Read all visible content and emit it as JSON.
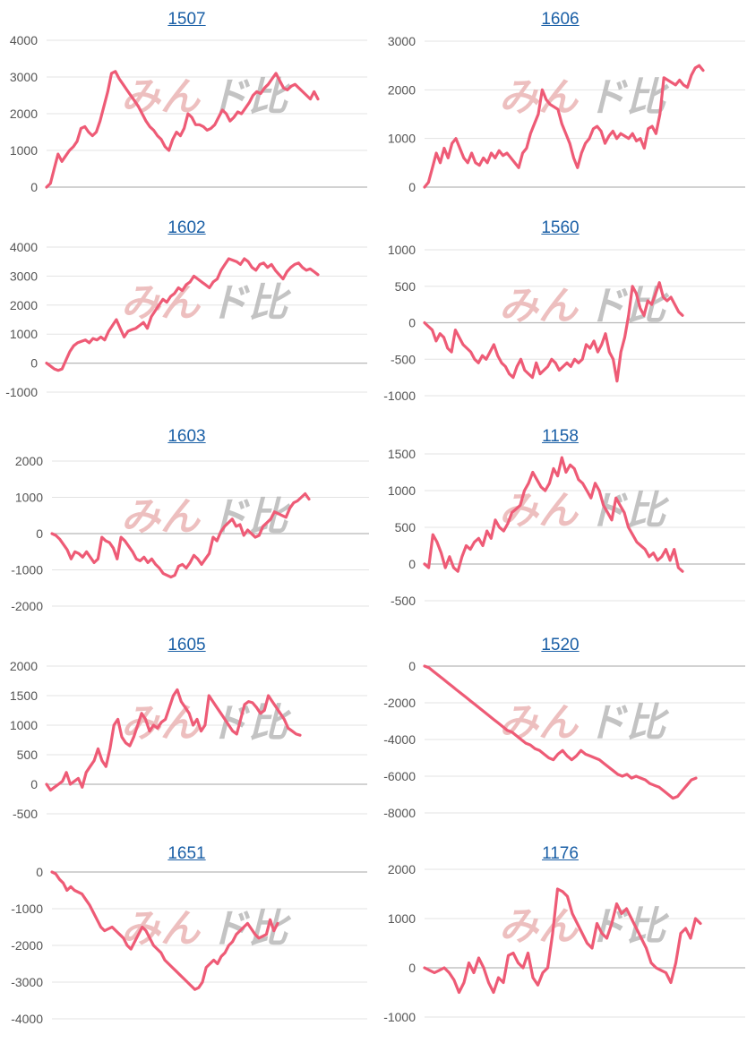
{
  "chart_data": [
    {
      "type": "line",
      "title": "1507",
      "yticks": [
        "4000",
        "3000",
        "2000",
        "1000",
        "0"
      ],
      "ylim": [
        0,
        4000
      ],
      "values": [
        0,
        100,
        500,
        900,
        700,
        850,
        1000,
        1100,
        1250,
        1600,
        1650,
        1500,
        1400,
        1500,
        1800,
        2200,
        2600,
        3100,
        3150,
        2950,
        2800,
        2650,
        2500,
        2350,
        2200,
        2000,
        1800,
        1650,
        1550,
        1400,
        1300,
        1100,
        1000,
        1300,
        1500,
        1400,
        1600,
        2000,
        1900,
        1700,
        1700,
        1650,
        1550,
        1600,
        1700,
        1900,
        2100,
        2000,
        1800,
        1900,
        2050,
        2000,
        2150,
        2300,
        2500,
        2600,
        2550,
        2700,
        2800,
        2950,
        3100,
        2900,
        2700,
        2650,
        2750,
        2800,
        2700,
        2600,
        2500,
        2400,
        2600,
        2400
      ]
    },
    {
      "type": "line",
      "title": "1606",
      "yticks": [
        "3000",
        "2000",
        "1000",
        "0"
      ],
      "ylim": [
        0,
        3000
      ],
      "values": [
        0,
        100,
        400,
        700,
        500,
        800,
        600,
        900,
        1000,
        800,
        600,
        500,
        700,
        500,
        450,
        600,
        500,
        700,
        600,
        750,
        650,
        700,
        600,
        500,
        400,
        700,
        800,
        1100,
        1300,
        1500,
        2000,
        1800,
        1700,
        1650,
        1600,
        1300,
        1100,
        900,
        600,
        400,
        700,
        900,
        1000,
        1200,
        1250,
        1150,
        900,
        1050,
        1150,
        1000,
        1100,
        1050,
        1000,
        1100,
        950,
        1000,
        800,
        1200,
        1250,
        1100,
        1500,
        2250,
        2200,
        2150,
        2100,
        2200,
        2100,
        2050,
        2300,
        2450,
        2500,
        2400
      ]
    },
    {
      "type": "line",
      "title": "1602",
      "yticks": [
        "4000",
        "3000",
        "2000",
        "1000",
        "0",
        "-1000"
      ],
      "ylim": [
        -1000,
        4000
      ],
      "values": [
        0,
        -100,
        -200,
        -250,
        -200,
        100,
        400,
        600,
        700,
        750,
        800,
        700,
        850,
        800,
        900,
        800,
        1100,
        1300,
        1500,
        1200,
        900,
        1100,
        1150,
        1200,
        1300,
        1400,
        1200,
        1600,
        1800,
        2000,
        2200,
        2100,
        2300,
        2400,
        2600,
        2500,
        2700,
        2800,
        3000,
        2900,
        2800,
        2700,
        2600,
        2800,
        2900,
        3200,
        3400,
        3600,
        3550,
        3500,
        3400,
        3600,
        3500,
        3300,
        3200,
        3400,
        3450,
        3300,
        3400,
        3200,
        3050,
        2900,
        3150,
        3300,
        3400,
        3450,
        3300,
        3200,
        3250,
        3150,
        3050
      ]
    },
    {
      "type": "line",
      "title": "1560",
      "yticks": [
        "1000",
        "500",
        "0",
        "-500",
        "-1000"
      ],
      "ylim": [
        -1000,
        1000
      ],
      "values": [
        0,
        -50,
        -100,
        -250,
        -150,
        -200,
        -350,
        -400,
        -100,
        -200,
        -300,
        -350,
        -400,
        -500,
        -550,
        -450,
        -500,
        -400,
        -300,
        -450,
        -550,
        -600,
        -700,
        -750,
        -600,
        -500,
        -650,
        -700,
        -750,
        -550,
        -700,
        -650,
        -600,
        -500,
        -550,
        -650,
        -600,
        -550,
        -600,
        -500,
        -550,
        -500,
        -300,
        -350,
        -250,
        -400,
        -300,
        -150,
        -400,
        -500,
        -800,
        -400,
        -200,
        100,
        500,
        400,
        200,
        100,
        300,
        250,
        400,
        550,
        350,
        300,
        350,
        250,
        150,
        100
      ]
    },
    {
      "type": "line",
      "title": "1603",
      "yticks": [
        "2000",
        "1000",
        "0",
        "-1000",
        "-2000"
      ],
      "ylim": [
        -2000,
        2000
      ],
      "values": [
        0,
        -50,
        -150,
        -300,
        -450,
        -700,
        -500,
        -550,
        -650,
        -500,
        -650,
        -800,
        -700,
        -100,
        -200,
        -250,
        -400,
        -700,
        -100,
        -200,
        -350,
        -500,
        -700,
        -750,
        -650,
        -800,
        -700,
        -850,
        -950,
        -1100,
        -1150,
        -1200,
        -1150,
        -900,
        -850,
        -950,
        -800,
        -600,
        -700,
        -850,
        -700,
        -550,
        -100,
        -200,
        50,
        200,
        300,
        400,
        200,
        250,
        -50,
        100,
        0,
        -100,
        -50,
        200,
        300,
        400,
        600,
        550,
        500,
        450,
        700,
        850,
        900,
        1000,
        1100,
        950
      ]
    },
    {
      "type": "line",
      "title": "1158",
      "yticks": [
        "1500",
        "1000",
        "500",
        "0",
        "-500"
      ],
      "ylim": [
        -500,
        1500
      ],
      "values": [
        0,
        -50,
        400,
        300,
        150,
        -50,
        100,
        -50,
        -100,
        100,
        250,
        200,
        300,
        350,
        250,
        450,
        350,
        600,
        500,
        450,
        550,
        700,
        750,
        800,
        1000,
        1100,
        1250,
        1150,
        1050,
        1000,
        1100,
        1300,
        1200,
        1450,
        1250,
        1350,
        1300,
        1150,
        1100,
        1000,
        900,
        1100,
        1000,
        800,
        700,
        600,
        900,
        800,
        700,
        500,
        400,
        300,
        250,
        200,
        100,
        150,
        50,
        100,
        200,
        50,
        200,
        -50,
        -100
      ]
    },
    {
      "type": "line",
      "title": "1605",
      "yticks": [
        "2000",
        "1500",
        "1000",
        "500",
        "0",
        "-500"
      ],
      "ylim": [
        -500,
        2000
      ],
      "values": [
        0,
        -100,
        -50,
        0,
        50,
        200,
        0,
        50,
        100,
        -50,
        200,
        300,
        400,
        600,
        400,
        300,
        600,
        1000,
        1100,
        800,
        700,
        650,
        800,
        1000,
        1200,
        1100,
        900,
        1000,
        950,
        1050,
        1100,
        1300,
        1500,
        1600,
        1400,
        1300,
        1200,
        1000,
        1100,
        900,
        1000,
        1500,
        1400,
        1300,
        1200,
        1100,
        1000,
        900,
        850,
        1100,
        1350,
        1400,
        1380,
        1300,
        1200,
        1250,
        1500,
        1400,
        1300,
        1200,
        1100,
        950,
        900,
        850,
        830
      ]
    },
    {
      "type": "line",
      "title": "1520",
      "yticks": [
        "0",
        "-2000",
        "-4000",
        "-6000",
        "-8000"
      ],
      "ylim": [
        -8000,
        0
      ],
      "values": [
        0,
        -100,
        -300,
        -500,
        -700,
        -900,
        -1100,
        -1300,
        -1500,
        -1700,
        -1900,
        -2100,
        -2300,
        -2500,
        -2700,
        -2900,
        -3100,
        -3300,
        -3500,
        -3600,
        -3800,
        -4000,
        -4200,
        -4300,
        -4500,
        -4600,
        -4800,
        -5000,
        -5100,
        -4800,
        -4600,
        -4900,
        -5100,
        -4900,
        -4600,
        -4800,
        -4900,
        -5000,
        -5100,
        -5300,
        -5500,
        -5700,
        -5900,
        -6000,
        -5900,
        -6100,
        -6000,
        -6100,
        -6200,
        -6400,
        -6500,
        -6600,
        -6800,
        -7000,
        -7200,
        -7100,
        -6800,
        -6500,
        -6200,
        -6100
      ]
    },
    {
      "type": "line",
      "title": "1651",
      "yticks": [
        "0",
        "-1000",
        "-2000",
        "-3000",
        "-4000"
      ],
      "ylim": [
        -4000,
        0
      ],
      "values": [
        0,
        -50,
        -200,
        -300,
        -500,
        -400,
        -500,
        -550,
        -600,
        -750,
        -900,
        -1100,
        -1300,
        -1500,
        -1600,
        -1550,
        -1500,
        -1600,
        -1700,
        -1800,
        -2000,
        -2100,
        -1900,
        -1700,
        -1500,
        -1600,
        -1800,
        -2000,
        -2100,
        -2200,
        -2400,
        -2500,
        -2600,
        -2700,
        -2800,
        -2900,
        -3000,
        -3100,
        -3200,
        -3150,
        -3000,
        -2600,
        -2500,
        -2400,
        -2500,
        -2300,
        -2200,
        -2000,
        -1900,
        -1700,
        -1600,
        -1500,
        -1400,
        -1550,
        -1700,
        -1800,
        -1750,
        -1700,
        -1300,
        -1600,
        -1400
      ]
    },
    {
      "type": "line",
      "title": "1176",
      "yticks": [
        "2000",
        "1000",
        "0",
        "-1000"
      ],
      "ylim": [
        -1000,
        2000
      ],
      "values": [
        0,
        -50,
        -100,
        -50,
        0,
        -100,
        -250,
        -500,
        -300,
        100,
        -100,
        200,
        0,
        -300,
        -500,
        -200,
        -300,
        250,
        300,
        100,
        0,
        300,
        -200,
        -350,
        -100,
        0,
        700,
        1600,
        1550,
        1450,
        1100,
        900,
        700,
        500,
        400,
        900,
        700,
        600,
        900,
        1300,
        1100,
        1200,
        1000,
        800,
        600,
        400,
        100,
        0,
        -50,
        -100,
        -300,
        100,
        700,
        800,
        600,
        1000,
        900
      ]
    }
  ],
  "watermark": {
    "part1": "みん",
    "part2": "ド比"
  }
}
